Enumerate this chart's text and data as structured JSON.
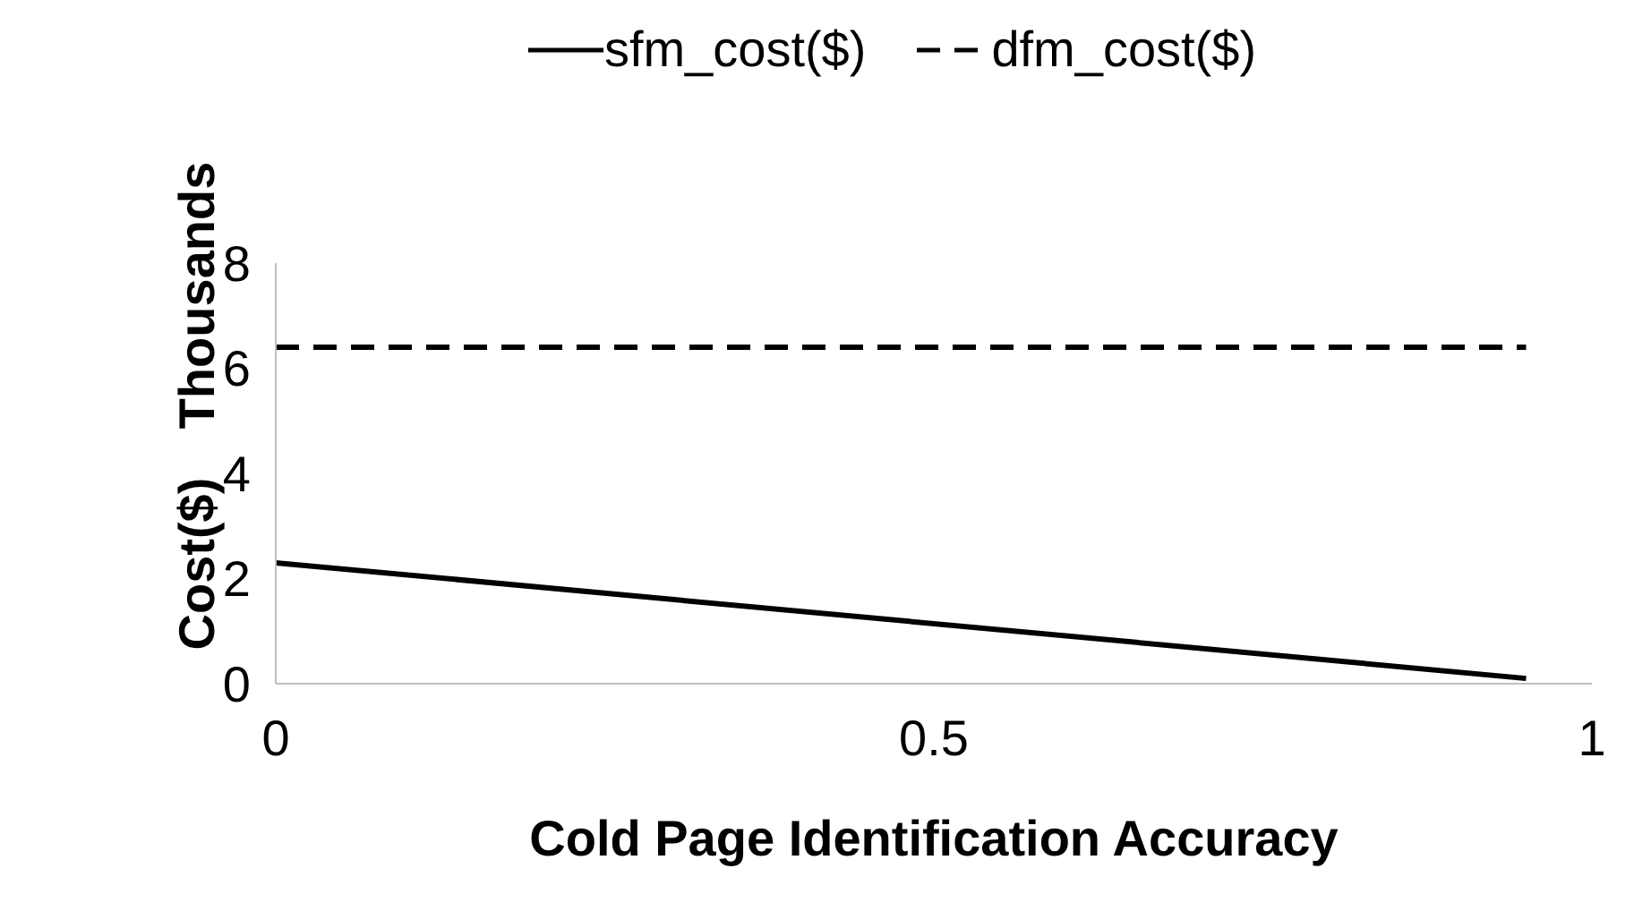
{
  "chart_data": {
    "type": "line",
    "xlabel": "Cold Page Identification Accuracy",
    "ylabel": "Cost($)",
    "annotations": [
      "Thousands"
    ],
    "x": [
      0,
      0.95
    ],
    "xlim": [
      0,
      1
    ],
    "xticks": [
      0,
      0.5,
      1
    ],
    "ylim": [
      0,
      8
    ],
    "yticks": [
      0,
      2,
      4,
      6,
      8
    ],
    "grid": false,
    "legend": "top",
    "marker": "none",
    "series": [
      {
        "name": "sfm_cost($)",
        "color": "#000000",
        "values": [
          2.3,
          0.1
        ],
        "line_style": "solid"
      },
      {
        "name": "dfm_cost($)",
        "color": "#000000",
        "values": [
          6.4,
          6.4
        ],
        "line_style": "dashed"
      }
    ]
  }
}
